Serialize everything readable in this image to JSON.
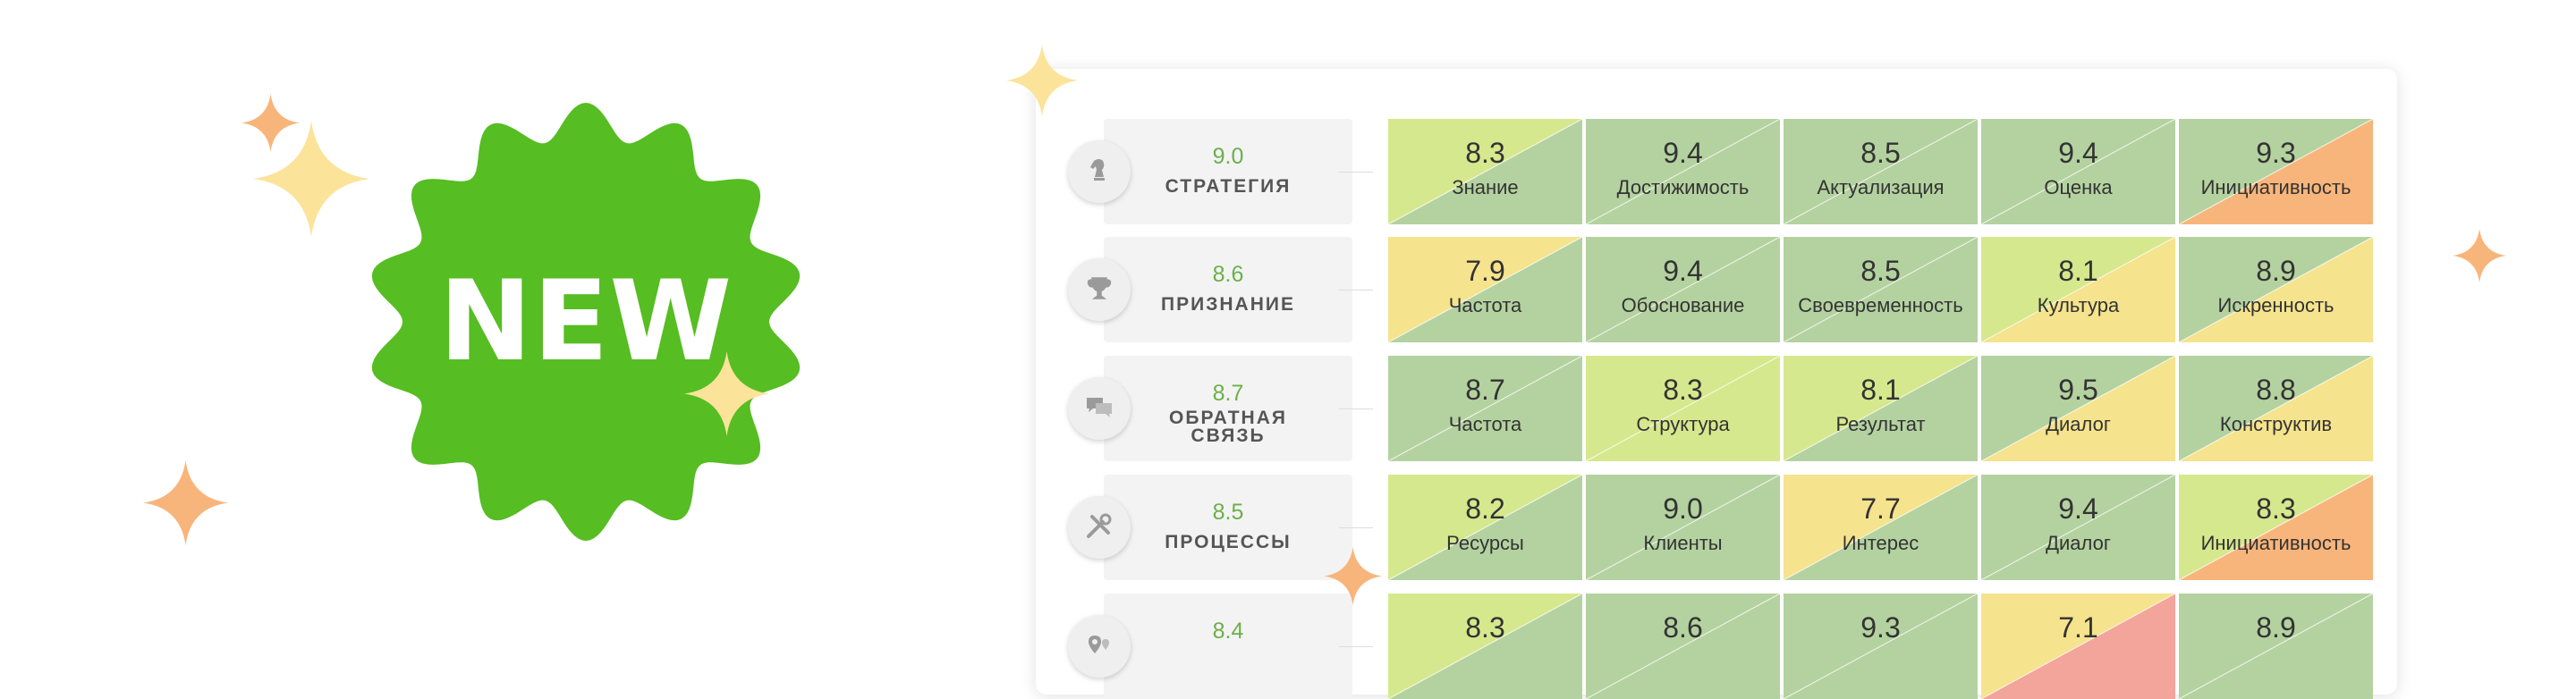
{
  "badge": {
    "text": "NEW",
    "color": "#56bd22"
  },
  "colors": {
    "green": "#b4d2a0",
    "lime": "#d6e88d",
    "yellow": "#f5e38d",
    "orange": "#f8b57b",
    "red": "#f3a49b",
    "highlight_border": "#d42020",
    "score_green": "#6bb04a"
  },
  "rows": [
    {
      "score": "9.0",
      "name": "СТРАТЕГИЯ",
      "icon": "chess-knight-icon",
      "cells": [
        {
          "value": "8.3",
          "label": "Знание",
          "tl": "lime",
          "br": "green"
        },
        {
          "value": "9.4",
          "label": "Достижимость",
          "tl": "green",
          "br": "green"
        },
        {
          "value": "8.5",
          "label": "Актуализация",
          "tl": "green",
          "br": "green"
        },
        {
          "value": "9.4",
          "label": "Оценка",
          "tl": "green",
          "br": "green"
        },
        {
          "value": "9.3",
          "label": "Инициативность",
          "tl": "green",
          "br": "orange"
        }
      ]
    },
    {
      "score": "8.6",
      "name": "ПРИЗНАНИЕ",
      "icon": "trophy-icon",
      "cells": [
        {
          "value": "7.9",
          "label": "Частота",
          "tl": "yellow",
          "br": "green"
        },
        {
          "value": "9.4",
          "label": "Обоснование",
          "tl": "green",
          "br": "green"
        },
        {
          "value": "8.5",
          "label": "Своевременность",
          "tl": "green",
          "br": "green"
        },
        {
          "value": "8.1",
          "label": "Культура",
          "tl": "lime",
          "br": "yellow"
        },
        {
          "value": "8.9",
          "label": "Искренность",
          "tl": "green",
          "br": "yellow"
        }
      ]
    },
    {
      "score": "8.7",
      "name": "ОБРАТНАЯ СВЯЗЬ",
      "name_line1": "ОБРАТНАЯ",
      "name_line2": "СВЯЗЬ",
      "icon": "chat-bubbles-icon",
      "cells": [
        {
          "value": "8.7",
          "label": "Частота",
          "tl": "green",
          "br": "green"
        },
        {
          "value": "8.3",
          "label": "Структура",
          "tl": "lime",
          "br": "lime"
        },
        {
          "value": "8.1",
          "label": "Результат",
          "tl": "lime",
          "br": "green"
        },
        {
          "value": "9.5",
          "label": "Диалог",
          "tl": "green",
          "br": "yellow"
        },
        {
          "value": "8.8",
          "label": "Конструктив",
          "tl": "green",
          "br": "yellow"
        }
      ]
    },
    {
      "score": "8.5",
      "name": "ПРОЦЕССЫ",
      "icon": "tools-icon",
      "cells": [
        {
          "value": "8.2",
          "label": "Ресурсы",
          "tl": "lime",
          "br": "green"
        },
        {
          "value": "9.0",
          "label": "Клиенты",
          "tl": "green",
          "br": "green"
        },
        {
          "value": "7.7",
          "label": "Интерес",
          "tl": "yellow",
          "br": "green"
        },
        {
          "value": "9.4",
          "label": "Диалог",
          "tl": "green",
          "br": "green"
        },
        {
          "value": "8.3",
          "label": "Инициативность",
          "tl": "lime",
          "br": "orange"
        }
      ]
    },
    {
      "score": "8.4",
      "name": "",
      "icon": "map-pin-icon",
      "cells": [
        {
          "value": "8.3",
          "label": "",
          "tl": "lime",
          "br": "green"
        },
        {
          "value": "8.6",
          "label": "",
          "tl": "green",
          "br": "green"
        },
        {
          "value": "9.3",
          "label": "",
          "tl": "green",
          "br": "green"
        },
        {
          "value": "7.1",
          "label": "",
          "tl": "yellow",
          "br": "red",
          "highlight": true
        },
        {
          "value": "8.9",
          "label": "",
          "tl": "green",
          "br": "green"
        }
      ]
    }
  ]
}
